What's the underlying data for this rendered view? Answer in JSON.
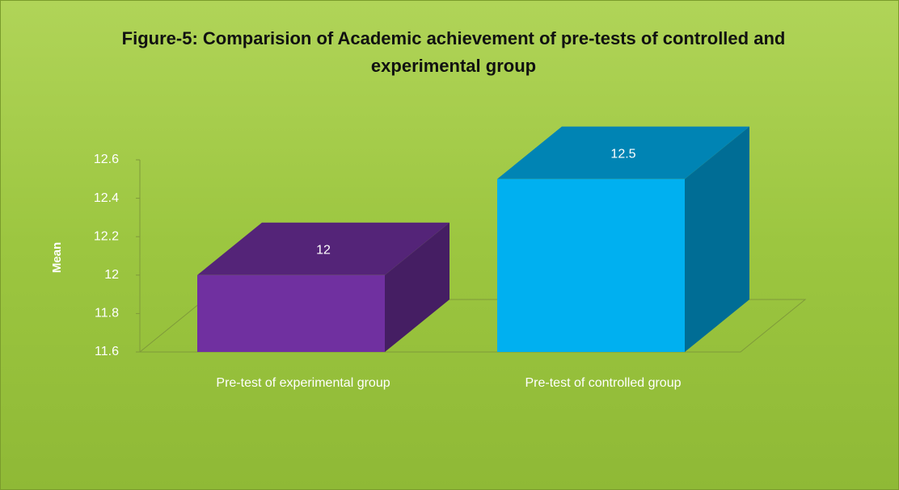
{
  "chart_data": {
    "type": "bar3d",
    "title": "Figure-5: Comparision of Academic achievement of pre-tests of controlled and experimental group",
    "ylabel": "Mean",
    "categories": [
      "Pre-test of experimental group",
      "Pre-test of controlled group"
    ],
    "values": [
      12,
      12.5
    ],
    "colors": [
      "#7030a0",
      "#00b0f0"
    ],
    "ylim": [
      11.6,
      12.6
    ],
    "yticks": [
      11.6,
      11.8,
      12,
      12.2,
      12.4,
      12.6
    ],
    "grid": false
  }
}
